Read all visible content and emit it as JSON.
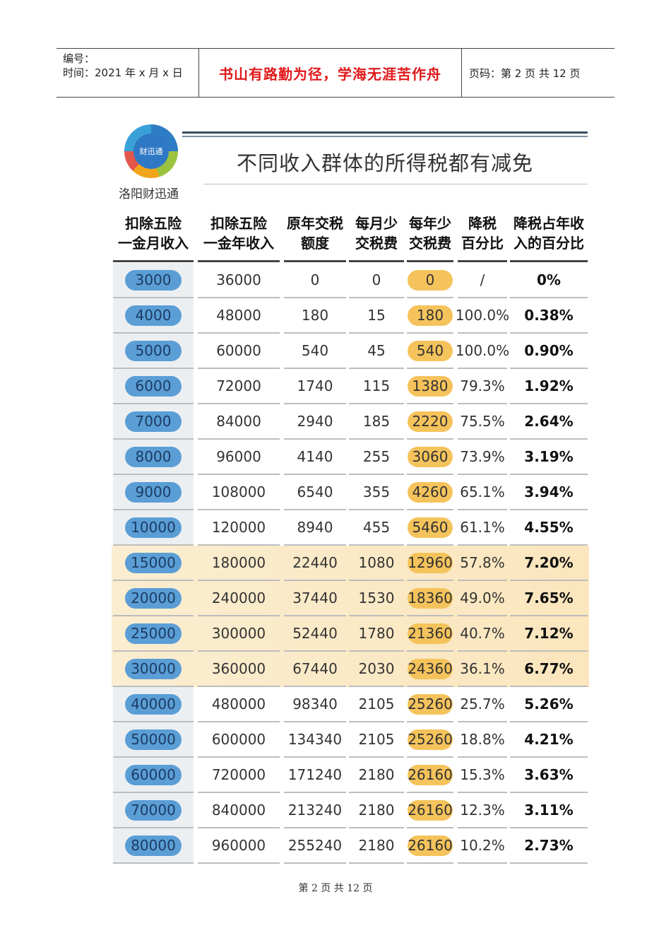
{
  "header": {
    "number_label": "编号：",
    "time_label": "时间：2021 年 x 月 x 日",
    "motto": "书山有路勤为径，学海无涯苦作舟",
    "page_label": "页码：第 2 页  共 12 页"
  },
  "infographic": {
    "logo_text": "财迅通",
    "brand": "洛阳财迅通",
    "title": "不同收入群体的所得税都有减免",
    "columns": [
      "扣除五险一金月收入",
      "扣除五险一金年收入",
      "原年交税额度",
      "每月少交税费",
      "每年少交税费",
      "降税百分比",
      "降税占年收入的百分比"
    ],
    "rows": [
      [
        "3000",
        "36000",
        "0",
        "0",
        "0",
        "/",
        "0%"
      ],
      [
        "4000",
        "48000",
        "180",
        "15",
        "180",
        "100.0%",
        "0.38%"
      ],
      [
        "5000",
        "60000",
        "540",
        "45",
        "540",
        "100.0%",
        "0.90%"
      ],
      [
        "6000",
        "72000",
        "1740",
        "115",
        "1380",
        "79.3%",
        "1.92%"
      ],
      [
        "7000",
        "84000",
        "2940",
        "185",
        "2220",
        "75.5%",
        "2.64%"
      ],
      [
        "8000",
        "96000",
        "4140",
        "255",
        "3060",
        "73.9%",
        "3.19%"
      ],
      [
        "9000",
        "108000",
        "6540",
        "355",
        "4260",
        "65.1%",
        "3.94%"
      ],
      [
        "10000",
        "120000",
        "8940",
        "455",
        "5460",
        "61.1%",
        "4.55%"
      ],
      [
        "15000",
        "180000",
        "22440",
        "1080",
        "12960",
        "57.8%",
        "7.20%"
      ],
      [
        "20000",
        "240000",
        "37440",
        "1530",
        "18360",
        "49.0%",
        "7.65%"
      ],
      [
        "25000",
        "300000",
        "52440",
        "1780",
        "21360",
        "40.7%",
        "7.12%"
      ],
      [
        "30000",
        "360000",
        "67440",
        "2030",
        "24360",
        "36.1%",
        "6.77%"
      ],
      [
        "40000",
        "480000",
        "98340",
        "2105",
        "25260",
        "25.7%",
        "5.26%"
      ],
      [
        "50000",
        "600000",
        "134340",
        "2105",
        "25260",
        "18.8%",
        "4.21%"
      ],
      [
        "60000",
        "720000",
        "171240",
        "2180",
        "26160",
        "15.3%",
        "3.63%"
      ],
      [
        "70000",
        "840000",
        "213240",
        "2180",
        "26160",
        "12.3%",
        "3.11%"
      ],
      [
        "80000",
        "960000",
        "255240",
        "2180",
        "26160",
        "10.2%",
        "2.73%"
      ]
    ],
    "highlighted_rows": [
      8,
      9,
      10,
      11
    ]
  },
  "footer": {
    "page_text": "第 2 页 共 12 页"
  },
  "colors": {
    "motto": "#e0191b",
    "income_pill": "#5b9ed6",
    "savings_pill": "#f5c35b",
    "highlight_row": "#fbe9c6"
  }
}
